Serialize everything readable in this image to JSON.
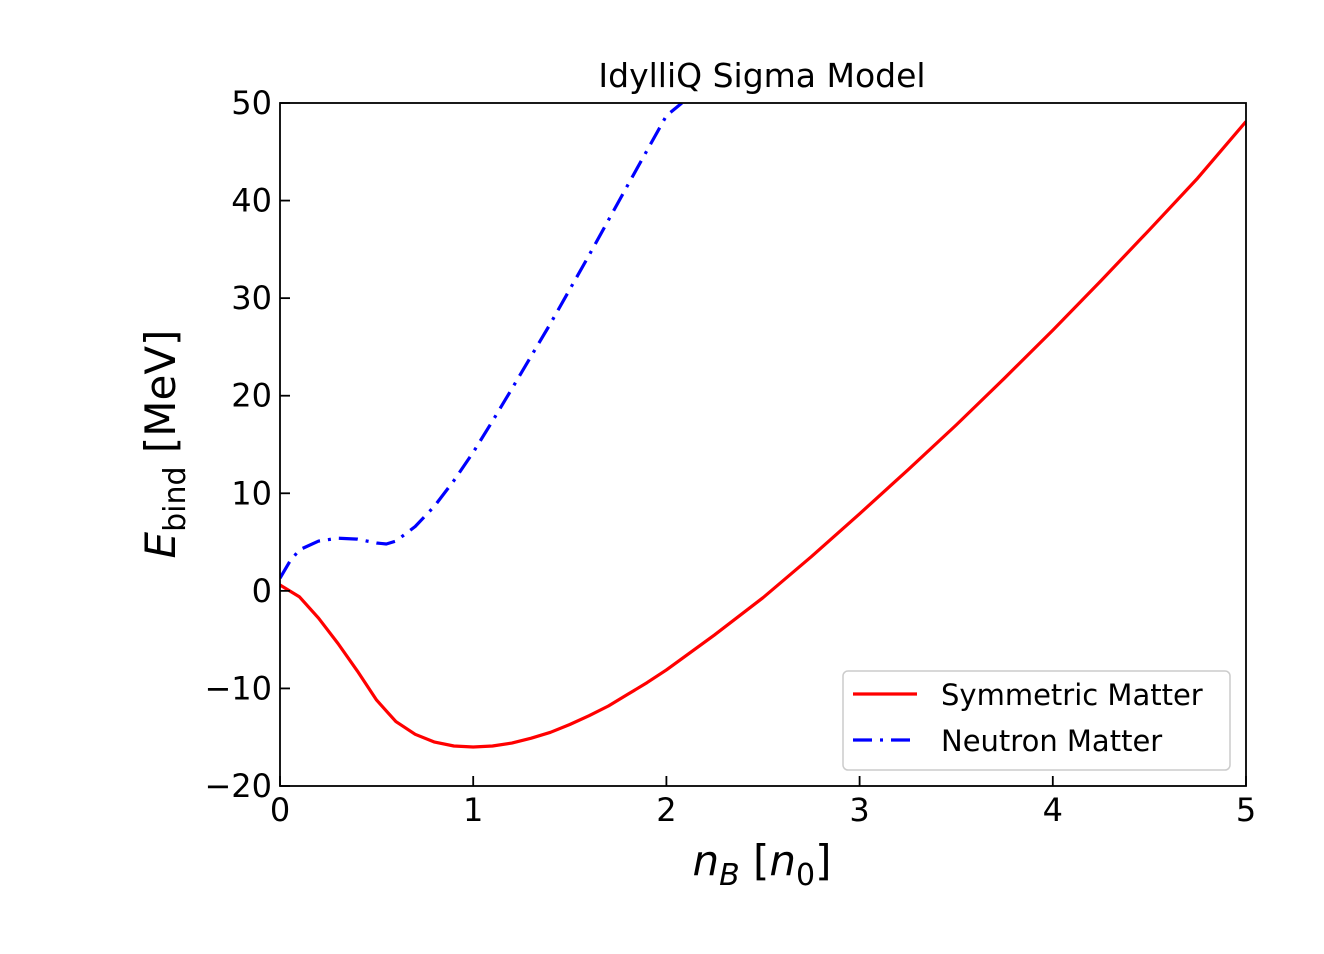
{
  "chart_data": {
    "type": "line",
    "title": "IdylliQ Sigma Model",
    "xlabel": {
      "main": "n",
      "sub": "B",
      "bracket_open": " [",
      "unit_main": "n",
      "unit_sub": "0",
      "bracket_close": "]"
    },
    "ylabel": {
      "main": "E",
      "sub": "bind",
      "unit": " [MeV]"
    },
    "xlim": [
      0,
      5
    ],
    "ylim": [
      -20,
      50
    ],
    "xticks": [
      0,
      1,
      2,
      3,
      4,
      5
    ],
    "xtick_labels": [
      "0",
      "1",
      "2",
      "3",
      "4",
      "5"
    ],
    "yticks": [
      -20,
      -10,
      0,
      10,
      20,
      30,
      40,
      50
    ],
    "ytick_labels": [
      "−20",
      "−10",
      "0",
      "10",
      "20",
      "30",
      "40",
      "50"
    ],
    "grid": false,
    "legend_position": "lower-right",
    "series": [
      {
        "name": "Symmetric Matter",
        "color": "#ff0000",
        "style": "solid",
        "x": [
          0,
          0.1,
          0.2,
          0.3,
          0.4,
          0.5,
          0.55,
          0.6,
          0.7,
          0.8,
          0.9,
          1.0,
          1.1,
          1.2,
          1.3,
          1.4,
          1.5,
          1.6,
          1.7,
          1.8,
          1.9,
          2.0,
          2.25,
          2.5,
          2.75,
          3.0,
          3.25,
          3.5,
          3.75,
          4.0,
          4.25,
          4.5,
          4.75,
          5.0
        ],
        "y": [
          0.6,
          -0.6,
          -2.8,
          -5.4,
          -8.2,
          -11.2,
          -12.3,
          -13.4,
          -14.7,
          -15.5,
          -15.9,
          -16.0,
          -15.9,
          -15.6,
          -15.1,
          -14.5,
          -13.7,
          -12.8,
          -11.8,
          -10.6,
          -9.4,
          -8.1,
          -4.5,
          -0.7,
          3.5,
          7.9,
          12.4,
          17.0,
          21.8,
          26.7,
          31.8,
          37.0,
          42.3,
          48.1
        ]
      },
      {
        "name": "Neutron Matter",
        "color": "#0000ff",
        "style": "dashdot",
        "x": [
          0,
          0.05,
          0.1,
          0.2,
          0.3,
          0.4,
          0.5,
          0.55,
          0.6,
          0.7,
          0.8,
          0.9,
          1.0,
          1.1,
          1.2,
          1.4,
          1.6,
          1.8,
          2.0,
          2.08
        ],
        "y": [
          1.3,
          3.0,
          4.2,
          5.1,
          5.4,
          5.3,
          4.9,
          4.8,
          5.1,
          6.6,
          8.7,
          11.3,
          14.2,
          17.4,
          20.7,
          27.4,
          34.4,
          41.6,
          48.7,
          50.0
        ]
      }
    ]
  }
}
